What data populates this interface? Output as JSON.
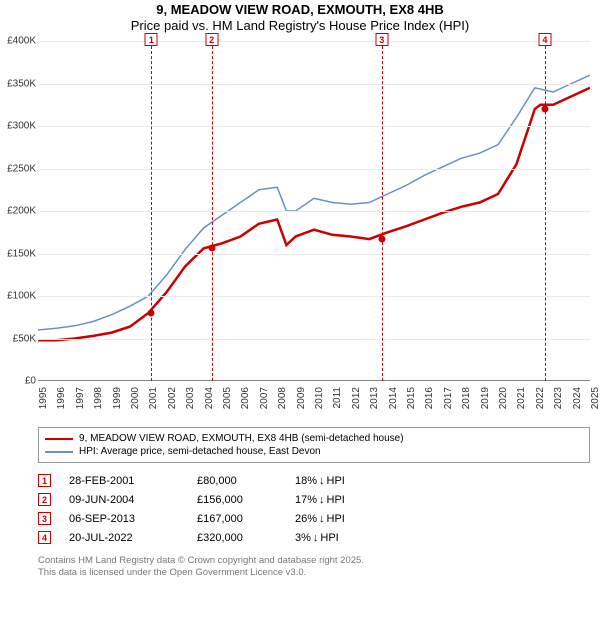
{
  "title1": "9, MEADOW VIEW ROAD, EXMOUTH, EX8 4HB",
  "title2": "Price paid vs. HM Land Registry's House Price Index (HPI)",
  "chart": {
    "type": "line",
    "y": {
      "min": 0,
      "max": 400000,
      "step": 50000,
      "ticks": [
        "£0",
        "£50K",
        "£100K",
        "£150K",
        "£200K",
        "£250K",
        "£300K",
        "£350K",
        "£400K"
      ]
    },
    "x": {
      "years": [
        1995,
        1996,
        1997,
        1998,
        1999,
        2000,
        2001,
        2002,
        2003,
        2004,
        2005,
        2006,
        2007,
        2008,
        2009,
        2010,
        2011,
        2012,
        2013,
        2014,
        2015,
        2016,
        2017,
        2018,
        2019,
        2020,
        2021,
        2022,
        2023,
        2024,
        2025
      ]
    },
    "grid_color": "#eaeaea",
    "series": [
      {
        "label": "9, MEADOW VIEW ROAD, EXMOUTH, EX8 4HB (semi-detached house)",
        "color": "#cc0000",
        "width": 2.5,
        "points": [
          [
            1995,
            48000
          ],
          [
            1996,
            48000
          ],
          [
            1997,
            50000
          ],
          [
            1998,
            53000
          ],
          [
            1999,
            57000
          ],
          [
            2000,
            64000
          ],
          [
            2001,
            80000
          ],
          [
            2002,
            105000
          ],
          [
            2003,
            135000
          ],
          [
            2004,
            156000
          ],
          [
            2005,
            162000
          ],
          [
            2006,
            170000
          ],
          [
            2007,
            185000
          ],
          [
            2008,
            190000
          ],
          [
            2008.5,
            160000
          ],
          [
            2009,
            170000
          ],
          [
            2010,
            178000
          ],
          [
            2011,
            172000
          ],
          [
            2012,
            170000
          ],
          [
            2013,
            167000
          ],
          [
            2014,
            175000
          ],
          [
            2015,
            182000
          ],
          [
            2016,
            190000
          ],
          [
            2017,
            198000
          ],
          [
            2018,
            205000
          ],
          [
            2019,
            210000
          ],
          [
            2020,
            220000
          ],
          [
            2021,
            255000
          ],
          [
            2022,
            320000
          ],
          [
            2022.3,
            325000
          ],
          [
            2023,
            325000
          ],
          [
            2024,
            335000
          ],
          [
            2025,
            345000
          ]
        ]
      },
      {
        "label": "HPI: Average price, semi-detached house, East Devon",
        "color": "#6a8fc7",
        "width": 1.5,
        "points": [
          [
            1995,
            60000
          ],
          [
            1996,
            62000
          ],
          [
            1997,
            65000
          ],
          [
            1998,
            70000
          ],
          [
            1999,
            78000
          ],
          [
            2000,
            88000
          ],
          [
            2001,
            100000
          ],
          [
            2002,
            125000
          ],
          [
            2003,
            155000
          ],
          [
            2004,
            180000
          ],
          [
            2005,
            195000
          ],
          [
            2006,
            210000
          ],
          [
            2007,
            225000
          ],
          [
            2008,
            228000
          ],
          [
            2008.5,
            200000
          ],
          [
            2009,
            200000
          ],
          [
            2010,
            215000
          ],
          [
            2011,
            210000
          ],
          [
            2012,
            208000
          ],
          [
            2013,
            210000
          ],
          [
            2014,
            220000
          ],
          [
            2015,
            230000
          ],
          [
            2016,
            242000
          ],
          [
            2017,
            252000
          ],
          [
            2018,
            262000
          ],
          [
            2019,
            268000
          ],
          [
            2020,
            278000
          ],
          [
            2021,
            310000
          ],
          [
            2022,
            345000
          ],
          [
            2023,
            340000
          ],
          [
            2024,
            350000
          ],
          [
            2025,
            360000
          ]
        ]
      }
    ],
    "markers": [
      {
        "n": "1",
        "year": 2001.16,
        "price": 80000
      },
      {
        "n": "2",
        "year": 2004.44,
        "price": 156000
      },
      {
        "n": "3",
        "year": 2013.68,
        "price": 167000
      },
      {
        "n": "4",
        "year": 2022.55,
        "price": 320000
      }
    ]
  },
  "legend": {
    "rows": [
      {
        "color": "#cc0000",
        "label": "9, MEADOW VIEW ROAD, EXMOUTH, EX8 4HB (semi-detached house)"
      },
      {
        "color": "#6a8fc7",
        "label": "HPI: Average price, semi-detached house, East Devon"
      }
    ]
  },
  "transactions": [
    {
      "n": "1",
      "date": "28-FEB-2001",
      "price": "£80,000",
      "diff": "18%",
      "arrow": "↓",
      "vs": "HPI"
    },
    {
      "n": "2",
      "date": "09-JUN-2004",
      "price": "£156,000",
      "diff": "17%",
      "arrow": "↓",
      "vs": "HPI"
    },
    {
      "n": "3",
      "date": "06-SEP-2013",
      "price": "£167,000",
      "diff": "26%",
      "arrow": "↓",
      "vs": "HPI"
    },
    {
      "n": "4",
      "date": "20-JUL-2022",
      "price": "£320,000",
      "diff": "3%",
      "arrow": "↓",
      "vs": "HPI"
    }
  ],
  "footer1": "Contains HM Land Registry data © Crown copyright and database right 2025.",
  "footer2": "This data is licensed under the Open Government Licence v3.0."
}
